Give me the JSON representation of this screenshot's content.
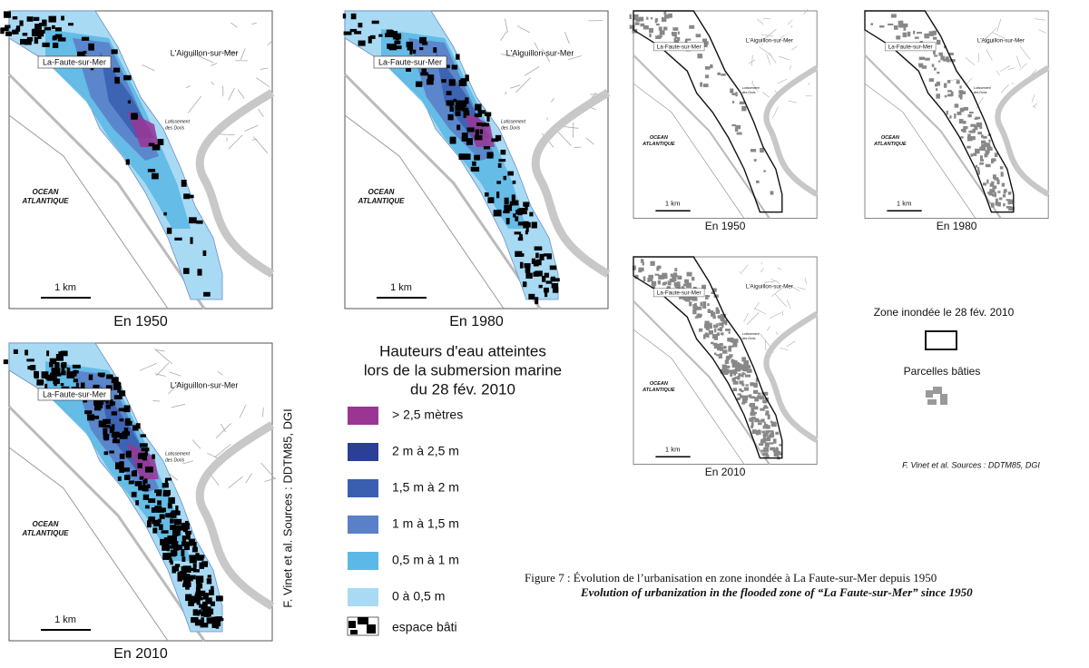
{
  "maps": [
    {
      "caption": "En 1950",
      "town_1": "La-Faute-sur-Mer",
      "town_2": "L'Aiguillon-sur-Mer",
      "ocean": [
        "OCEAN",
        "ATLANTIQUE"
      ],
      "scale": "1 km",
      "site": [
        "Lotissement",
        "des Doris"
      ]
    },
    {
      "caption": "En 1980",
      "town_1": "La-Faute-sur-Mer",
      "town_2": "L'Aiguillon-sur-Mer",
      "ocean": [
        "OCEAN",
        "ATLANTIQUE"
      ],
      "scale": "1 km",
      "site": [
        "Lotissement",
        "des Doris"
      ]
    },
    {
      "caption": "En 2010",
      "town_1": "La-Faute-sur-Mer",
      "town_2": "L'Aiguillon-sur-Mer",
      "ocean": [
        "OCEAN",
        "ATLANTIQUE"
      ],
      "scale": "1 km",
      "site": [
        "Lotissement",
        "des Doris"
      ]
    },
    {
      "caption": "En 1950",
      "town_1": "La-Faute-sur-Mer",
      "town_2": "L'Aiguillon-sur-Mer",
      "ocean": [
        "OCEAN",
        "ATLANTIQUE"
      ],
      "scale": "1 km",
      "site": [
        "Lotissement",
        "des Doris"
      ]
    },
    {
      "caption": "En 1980",
      "town_1": "La-Faute-sur-Mer",
      "town_2": "L'Aiguillon-sur-Mer",
      "ocean": [
        "OCEAN",
        "ATLANTIQUE"
      ],
      "scale": "1 km",
      "site": [
        "Lotissement",
        "des Doris"
      ]
    },
    {
      "caption": "En 2010",
      "town_1": "La-Faute-sur-Mer",
      "town_2": "L'Aiguillon-sur-Mer",
      "ocean": [
        "OCEAN",
        "ATLANTIQUE"
      ],
      "scale": "1 km",
      "site": [
        "Lotissement",
        "des Doris"
      ]
    }
  ],
  "legend": {
    "title": [
      "Hauteurs d'eau atteintes",
      "lors de la submersion marine",
      "du 28 fév. 2010"
    ],
    "items": [
      {
        "label": "> 2,5 mètres",
        "color": "#9b3594"
      },
      {
        "label": "2 m à 2,5 m",
        "color": "#2a3f95"
      },
      {
        "label": "1,5 m à 2 m",
        "color": "#3a5fb0"
      },
      {
        "label": "1 m à 1,5 m",
        "color": "#5a80c8"
      },
      {
        "label": "0,5 m à 1 m",
        "color": "#5cb8e6"
      },
      {
        "label": "0 à 0,5 m",
        "color": "#a8daf4"
      }
    ],
    "built": "espace bâti"
  },
  "source_left": "F. Vinet et al. Sources : DDTM85, DGI",
  "legend_right": {
    "zone": "Zone inondée le 28 fév. 2010",
    "parcels": "Parcelles bâties",
    "source": "F. Vinet et al. Sources : DDTM85, DGI"
  },
  "caption": {
    "fr": "Figure 7 : Évolution de l’urbanisation en zone inondée à La Faute-sur-Mer depuis 1950",
    "en": "Evolution of urbanization in the flooded zone of “La Faute-sur-Mer” since 1950"
  }
}
